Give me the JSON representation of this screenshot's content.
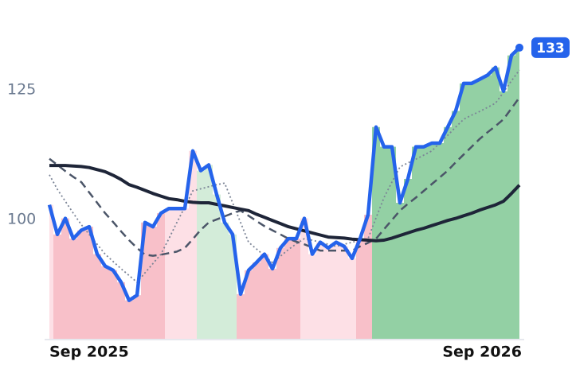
{
  "chart_data": {
    "type": "line",
    "categories": [
      "Sep 2025",
      null,
      null,
      null,
      null,
      null,
      null,
      null,
      null,
      null,
      null,
      null,
      null,
      null,
      null,
      null,
      null,
      null,
      null,
      null,
      null,
      null,
      null,
      null,
      null,
      null,
      null,
      null,
      null,
      null,
      null,
      null,
      null,
      null,
      null,
      null,
      null,
      null,
      null,
      null,
      null,
      null,
      null,
      null,
      null,
      null,
      null,
      null,
      null,
      null,
      null,
      null,
      null,
      null,
      null,
      null,
      null,
      null,
      null,
      "Sep 2026"
    ],
    "ylim": [
      77,
      136
    ],
    "yticks": [
      100,
      125
    ],
    "series": [
      {
        "color": "#2563eb",
        "line_style": "solid",
        "values": [
          102.8,
          97.1,
          100.2,
          96.3,
          97.9,
          98.6,
          93.3,
          91.0,
          90.2,
          87.9,
          84.4,
          85.4,
          99.4,
          98.6,
          101.2,
          102.1,
          102.1,
          102.1,
          113.2,
          109.4,
          110.5,
          104.8,
          99.4,
          97.1,
          85.6,
          90.2,
          91.7,
          93.3,
          90.5,
          94.5,
          96.3,
          96.3,
          100.2,
          93.3,
          95.6,
          94.5,
          95.6,
          94.8,
          92.5,
          96.3,
          100.9,
          117.8,
          114.0,
          114.0,
          103.2,
          107.8,
          114.0,
          114.0,
          114.7,
          114.7,
          117.8,
          120.9,
          126.2,
          126.2,
          127.0,
          127.8,
          129.3,
          124.7,
          131.6,
          133.1
        ],
        "value_labels": [
          null,
          null,
          null,
          null,
          null,
          null,
          null,
          null,
          null,
          null,
          null,
          null,
          null,
          null,
          null,
          null,
          null,
          null,
          null,
          null,
          null,
          null,
          null,
          null,
          null,
          null,
          null,
          null,
          null,
          null,
          null,
          null,
          null,
          null,
          null,
          null,
          null,
          null,
          null,
          null,
          null,
          null,
          null,
          null,
          null,
          null,
          null,
          null,
          null,
          null,
          null,
          null,
          null,
          null,
          null,
          null,
          null,
          null,
          null,
          "133"
        ],
        "area_colors": [
          "#fde0e6",
          "#f8c0c9",
          "#f8c0c9",
          "#f8c0c9",
          "#f8c0c9",
          "#f8c0c9",
          "#f8c0c9",
          "#f8c0c9",
          "#f8c0c9",
          "#f8c0c9",
          "#f8c0c9",
          "#f8c0c9",
          "#f8c0c9",
          "#f8c0c9",
          "#f8c0c9",
          "#fde0e6",
          "#fde0e6",
          "#fde0e6",
          "#fde0e6",
          "#d3ecd9",
          "#d3ecd9",
          "#d3ecd9",
          "#d3ecd9",
          "#d3ecd9",
          "#f8c0c9",
          "#f8c0c9",
          "#f8c0c9",
          "#f8c0c9",
          "#f8c0c9",
          "#f8c0c9",
          "#f8c0c9",
          "#f8c0c9",
          "#fde0e6",
          "#fde0e6",
          "#fde0e6",
          "#fde0e6",
          "#fde0e6",
          "#fde0e6",
          "#fde0e6",
          "#f8c0c9",
          "#f8c0c9",
          "#93d0a4",
          "#93d0a4",
          "#93d0a4",
          "#93d0a4",
          "#93d0a4",
          "#93d0a4",
          "#93d0a4",
          "#93d0a4",
          "#93d0a4",
          "#93d0a4",
          "#93d0a4",
          "#93d0a4",
          "#93d0a4",
          "#93d0a4",
          "#93d0a4",
          "#93d0a4",
          "#93d0a4",
          "#93d0a4",
          "#93d0a4"
        ]
      },
      {
        "color": "#1e2538",
        "line_style": "solid",
        "values": [
          110.4,
          110.4,
          110.4,
          110.3,
          110.2,
          110.0,
          109.6,
          109.2,
          108.5,
          107.7,
          106.7,
          106.2,
          105.6,
          105.0,
          104.5,
          104.0,
          103.8,
          103.5,
          103.3,
          103.2,
          103.2,
          102.9,
          102.6,
          102.3,
          102.0,
          101.7,
          101.0,
          100.4,
          99.8,
          99.2,
          98.6,
          98.2,
          97.8,
          97.4,
          97.0,
          96.6,
          96.5,
          96.4,
          96.2,
          96.1,
          96.0,
          95.9,
          96.0,
          96.4,
          96.9,
          97.4,
          97.9,
          98.3,
          98.8,
          99.3,
          99.8,
          100.2,
          100.7,
          101.2,
          101.8,
          102.3,
          102.8,
          103.5,
          105.0,
          106.6
        ]
      },
      {
        "color": "#4b5568",
        "line_style": "dashed",
        "values": [
          111.7,
          110.5,
          109.3,
          108.2,
          107.2,
          105.2,
          103.2,
          101.2,
          99.5,
          97.7,
          96.0,
          94.5,
          93.2,
          93.0,
          93.2,
          93.5,
          93.8,
          94.5,
          96.2,
          98.0,
          99.4,
          100.0,
          100.6,
          101.2,
          101.7,
          100.7,
          99.7,
          98.7,
          97.9,
          97.1,
          96.3,
          95.7,
          95.2,
          94.6,
          94.0,
          94.0,
          94.0,
          94.0,
          94.0,
          94.8,
          95.5,
          96.3,
          98.1,
          99.9,
          101.7,
          103.0,
          104.2,
          105.5,
          106.8,
          108.1,
          109.4,
          111.0,
          112.5,
          114.0,
          115.5,
          116.8,
          118.0,
          119.3,
          121.4,
          123.5
        ]
      },
      {
        "color": "#7b8496",
        "line_style": "dotted",
        "values": [
          108.6,
          105.8,
          103.5,
          101.2,
          99.0,
          97.1,
          95.2,
          93.3,
          91.9,
          90.5,
          89.2,
          87.9,
          89.7,
          91.5,
          93.3,
          96.3,
          99.4,
          102.4,
          105.5,
          105.9,
          106.3,
          106.7,
          107.0,
          103.2,
          99.4,
          95.6,
          94.3,
          93.0,
          91.7,
          92.9,
          94.2,
          95.3,
          96.3,
          96.0,
          95.6,
          95.2,
          94.8,
          95.2,
          95.6,
          96.0,
          96.3,
          100.3,
          104.2,
          107.2,
          110.1,
          110.9,
          111.6,
          112.4,
          113.2,
          114.7,
          116.2,
          117.8,
          119.3,
          120.1,
          120.8,
          121.6,
          122.4,
          124.5,
          126.7,
          128.8
        ]
      }
    ]
  }
}
